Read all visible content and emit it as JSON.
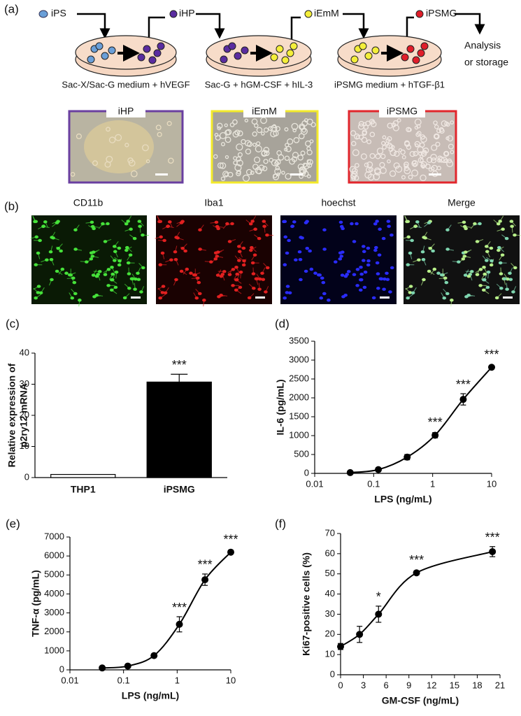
{
  "panel_labels": [
    "(a)",
    "(b)",
    "(c)",
    "(d)",
    "(e)",
    "(f)"
  ],
  "panel_a": {
    "cell_types": [
      "iPS",
      "iHP",
      "iEmM",
      "iPSMG"
    ],
    "end": [
      "Analysis",
      "or storage"
    ],
    "media": [
      "Sac-X/Sac-G medium + hVEGF",
      "Sac-G + hGM-CSF + hIL-3",
      "iPSMG medium + hTGF-β1"
    ],
    "images": [
      "iHP",
      "iEmM",
      "iPSMG"
    ]
  },
  "panel_b": {
    "channels": [
      "CD11b",
      "Iba1",
      "hoechst",
      "Merge"
    ]
  },
  "chart_data": [
    {
      "type": "bar",
      "ylabel": [
        "Relative expression of",
        "p2ry12 mRNA"
      ],
      "categories": [
        "THP1",
        "iPSMG"
      ],
      "values": [
        1,
        30.7
      ],
      "errors": [
        null,
        2.5
      ],
      "colors": [
        "#ffffff",
        "#000000"
      ],
      "significance": [
        null,
        "***"
      ],
      "ylim": [
        0,
        40
      ],
      "yticks": [
        0,
        10,
        20,
        30,
        40
      ]
    },
    {
      "type": "line",
      "ylabel": "IL-6 (pg/mL)",
      "xlabel": "LPS (ng/mL)",
      "xscale": "log",
      "x": [
        0.04,
        0.12,
        0.37,
        1.1,
        3.3,
        10
      ],
      "values": [
        20,
        100,
        430,
        1010,
        1960,
        2810
      ],
      "errors": [
        0,
        20,
        70,
        70,
        150,
        20
      ],
      "significance": [
        null,
        null,
        null,
        "***",
        "***",
        "***"
      ],
      "color": "#000000",
      "xlim": [
        0.01,
        10
      ],
      "xticks": [
        0.01,
        0.1,
        1,
        10
      ],
      "ylim": [
        0,
        3500
      ],
      "yticks": [
        0,
        500,
        1000,
        1500,
        2000,
        2500,
        3000,
        3500
      ]
    },
    {
      "type": "line",
      "ylabel": "TNF-α (pg/mL)",
      "xlabel": "LPS (ng/mL)",
      "xscale": "log",
      "x": [
        0.04,
        0.12,
        0.37,
        1.1,
        3.3,
        10
      ],
      "values": [
        100,
        200,
        750,
        2400,
        4750,
        6200
      ],
      "errors": [
        0,
        0,
        50,
        400,
        300,
        50
      ],
      "significance": [
        null,
        null,
        null,
        "***",
        "***",
        "***"
      ],
      "color": "#000000",
      "xlim": [
        0.01,
        10
      ],
      "xticks": [
        0.01,
        0.1,
        1,
        10
      ],
      "ylim": [
        0,
        7000
      ],
      "yticks": [
        0,
        1000,
        2000,
        3000,
        4000,
        5000,
        6000,
        7000
      ]
    },
    {
      "type": "line",
      "ylabel": "Ki67-positive cells (%)",
      "xlabel": "GM-CSF (ng/mL)",
      "xscale": "linear",
      "x": [
        0,
        2.5,
        5,
        10,
        20
      ],
      "values": [
        14,
        20,
        30,
        50.5,
        61
      ],
      "errors": [
        1.5,
        4,
        4,
        1,
        2.5
      ],
      "significance": [
        null,
        null,
        "*",
        "***",
        "***"
      ],
      "color": "#000000",
      "xlim": [
        0,
        21
      ],
      "xticks": [
        0,
        3,
        6,
        9,
        12,
        15,
        18,
        21
      ],
      "ylim": [
        0,
        70
      ],
      "yticks": [
        0,
        10,
        20,
        30,
        40,
        50,
        60,
        70
      ]
    }
  ]
}
